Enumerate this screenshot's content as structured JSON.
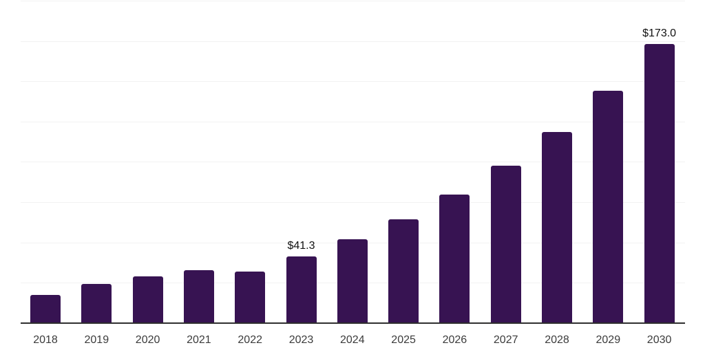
{
  "chart_data": {
    "type": "bar",
    "categories": [
      "2018",
      "2019",
      "2020",
      "2021",
      "2022",
      "2023",
      "2024",
      "2025",
      "2026",
      "2027",
      "2028",
      "2029",
      "2030"
    ],
    "values": [
      17.4,
      24.2,
      28.9,
      32.8,
      31.8,
      41.3,
      52.2,
      64.6,
      79.7,
      97.5,
      118.7,
      144.3,
      173.0
    ],
    "point_labels": [
      "",
      "",
      "",
      "",
      "",
      "$41.3",
      "",
      "",
      "",
      "",
      "",
      "",
      "$173.0"
    ],
    "title": "",
    "xlabel": "",
    "ylabel": "",
    "ylim": [
      0,
      200
    ],
    "gridline_step": 25,
    "grid": "horizontal",
    "legend": "none",
    "colors": {
      "bar": "#371352",
      "axis_line": "#2e2e2e",
      "gridline": "#f2f2f2",
      "tick_label": "#3b3b3b",
      "value_label": "#111111",
      "background": "#ffffff"
    }
  }
}
